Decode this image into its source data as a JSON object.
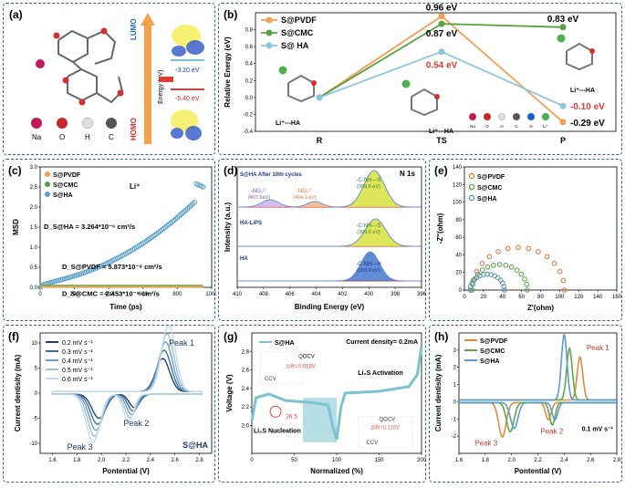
{
  "panels": {
    "a": {
      "label": "(a)",
      "lumo": "LUMO",
      "homo": "HOMO",
      "energy_axis": "Energy (eV)",
      "lumo_value": "-3.20 eV",
      "homo_value": "-5.40 eV",
      "legend": [
        "Na",
        "O",
        "H",
        "C"
      ],
      "colors": {
        "Na": "#c2185b",
        "O": "#c62828",
        "H": "#e0e0e0",
        "C": "#555555"
      }
    },
    "b": {
      "label": "(b)"
    },
    "c": {
      "label": "(c)"
    },
    "d": {
      "label": "(d)"
    },
    "e": {
      "label": "(e)"
    },
    "f": {
      "label": "(f)"
    },
    "g": {
      "label": "(g)"
    },
    "h": {
      "label": "(h)"
    }
  },
  "chart_data": [
    {
      "id": "b",
      "type": "line",
      "ylabel": "Relative Energy (eV)",
      "categories": [
        "R",
        "TS",
        "P"
      ],
      "ylim": [
        -0.4,
        1.0
      ],
      "yticks": [
        "-0.4",
        "-0.2",
        "0.0",
        "0.2",
        "0.4",
        "0.6",
        "0.8"
      ],
      "series": [
        {
          "name": "S@PVDF",
          "color": "#f0a050",
          "values": [
            0,
            0.96,
            -0.29
          ]
        },
        {
          "name": "S@CMC",
          "color": "#5aa040",
          "values": [
            0,
            0.87,
            0.83
          ]
        },
        {
          "name": "S@ HA",
          "color": "#8ac6e0",
          "values": [
            0,
            0.54,
            -0.1
          ]
        }
      ],
      "data_labels": [
        {
          "text": "0.96 eV",
          "color": "#000"
        },
        {
          "text": "0.87 eV",
          "color": "#000"
        },
        {
          "text": "0.54 eV",
          "color": "#e53935"
        },
        {
          "text": "0.83 eV",
          "color": "#000"
        },
        {
          "text": "-0.10 eV",
          "color": "#e53935"
        },
        {
          "text": "-0.29 eV",
          "color": "#000"
        }
      ],
      "annotations": [
        "Li⁺---HA",
        "Li⁺---HA",
        "Li⁺---HA"
      ],
      "atom_legend": [
        "Na",
        "O",
        "H",
        "C",
        "N",
        "Li⁺"
      ]
    },
    {
      "id": "c",
      "type": "scatter",
      "xlabel": "Time (ps)",
      "ylabel": "MSD",
      "xlim": [
        0,
        1000
      ],
      "ylim": [
        0,
        3
      ],
      "xticks": [
        "0",
        "200",
        "400",
        "600",
        "800",
        "1000"
      ],
      "yticks": [
        "0.0",
        "0.5",
        "1.0",
        "1.5",
        "2.0",
        "2.5",
        "3.0"
      ],
      "title": "Li⁺",
      "series": [
        {
          "name": "S@PVDF",
          "color": "#f0a050"
        },
        {
          "name": "S@CMC",
          "color": "#5aa040"
        },
        {
          "name": "S@HA",
          "color": "#5aa0c8"
        }
      ],
      "annotations": [
        "D_S@HA = 3.264*10⁻⁶ cm²/s",
        "D_S@PVDF = 5.873*10⁻⁸ cm²/s",
        "D_S@CMC = 2.453*10⁻⁹ cm²/s"
      ]
    },
    {
      "id": "d",
      "type": "line",
      "title": "N 1s",
      "xlabel": "Binding Energy (eV)",
      "ylabel": "Intensity (a.u.)",
      "xlim": [
        410,
        396
      ],
      "xticks": [
        "410",
        "408",
        "406",
        "404",
        "402",
        "400",
        "398",
        "396"
      ],
      "traces": [
        "S@HA After 10th cycles",
        "HA-LiPS",
        "HA"
      ],
      "annotations": [
        "-NO₃²⁻ (407.5eV)",
        "-NO₂²⁻ (404.1 eV)",
        "-C-NH---S (399.6 eV)",
        "-C-NH---S (399.5 eV)",
        "-C-NH---H (399.9 eV)"
      ]
    },
    {
      "id": "e",
      "type": "scatter",
      "xlabel": "Z'(ohm)",
      "ylabel": "-Z''(ohm)",
      "xlim": [
        0,
        160
      ],
      "ylim": [
        0,
        140
      ],
      "xticks": [
        "0",
        "20",
        "40",
        "60",
        "80",
        "100",
        "120",
        "140",
        "160"
      ],
      "yticks": [
        "0",
        "20",
        "40",
        "60",
        "80",
        "100",
        "120",
        "140"
      ],
      "series": [
        {
          "name": "S@PVDF",
          "color": "#e07030"
        },
        {
          "name": "S@CMC",
          "color": "#50a040"
        },
        {
          "name": "S@HA",
          "color": "#5090b0"
        }
      ]
    },
    {
      "id": "f",
      "type": "line",
      "xlabel": "Pontential (V)",
      "ylabel": "Current dentisity (mA)",
      "xlim": [
        1.5,
        2.9
      ],
      "ylim": [
        -12,
        12
      ],
      "xticks": [
        "1.6",
        "1.8",
        "2.0",
        "2.2",
        "2.4",
        "2.6",
        "2.8"
      ],
      "yticks": [
        "-10",
        "-5",
        "0",
        "5",
        "10"
      ],
      "series": [
        {
          "name": "0.2 mV s⁻¹"
        },
        {
          "name": "0.3 mV s⁻¹"
        },
        {
          "name": "0.4 mV s⁻¹"
        },
        {
          "name": "0.5 mV s⁻¹"
        },
        {
          "name": "0.6 mV s⁻¹"
        }
      ],
      "annotations": [
        "Peak 1",
        "Peak 2",
        "Peak 3",
        "S@HA"
      ]
    },
    {
      "id": "g",
      "type": "line",
      "xlabel": "Normalized (%)",
      "ylabel": "Voltage (V)",
      "xlim": [
        0,
        200
      ],
      "ylim": [
        1.7,
        3.0
      ],
      "xticks": [
        "0",
        "50",
        "100",
        "150",
        "200"
      ],
      "yticks": [
        "2.0",
        "2.2",
        "2.4",
        "2.6",
        "2.8"
      ],
      "series": [
        {
          "name": "S@HA"
        }
      ],
      "annotations": [
        "Current density= 0.2mA",
        "Li₂S Activation",
        "Li₂S Nucleation",
        "26.5",
        "QOCV",
        "ΔIR=0.018V",
        "CCV",
        "QOCV",
        "ΔIR=0.115V",
        "CCV"
      ]
    },
    {
      "id": "h",
      "type": "line",
      "xlabel": "Pontential (V)",
      "ylabel": "Current dentisity (mA)",
      "xlim": [
        1.6,
        2.8
      ],
      "ylim": [
        -3,
        4
      ],
      "xticks": [
        "1.6",
        "1.8",
        "2.0",
        "2.2",
        "2.4",
        "2.6",
        "2.8"
      ],
      "yticks": [
        "-2",
        "-1",
        "0",
        "1",
        "2",
        "3"
      ],
      "series": [
        {
          "name": "S@PVDF",
          "color": "#e08a40"
        },
        {
          "name": "S@CMC",
          "color": "#60a840"
        },
        {
          "name": "S@HA",
          "color": "#5a9ad0"
        }
      ],
      "annotations": [
        "Peak 1",
        "Peak 2",
        "Peak 3",
        "0.1 mV s⁻¹"
      ]
    }
  ]
}
